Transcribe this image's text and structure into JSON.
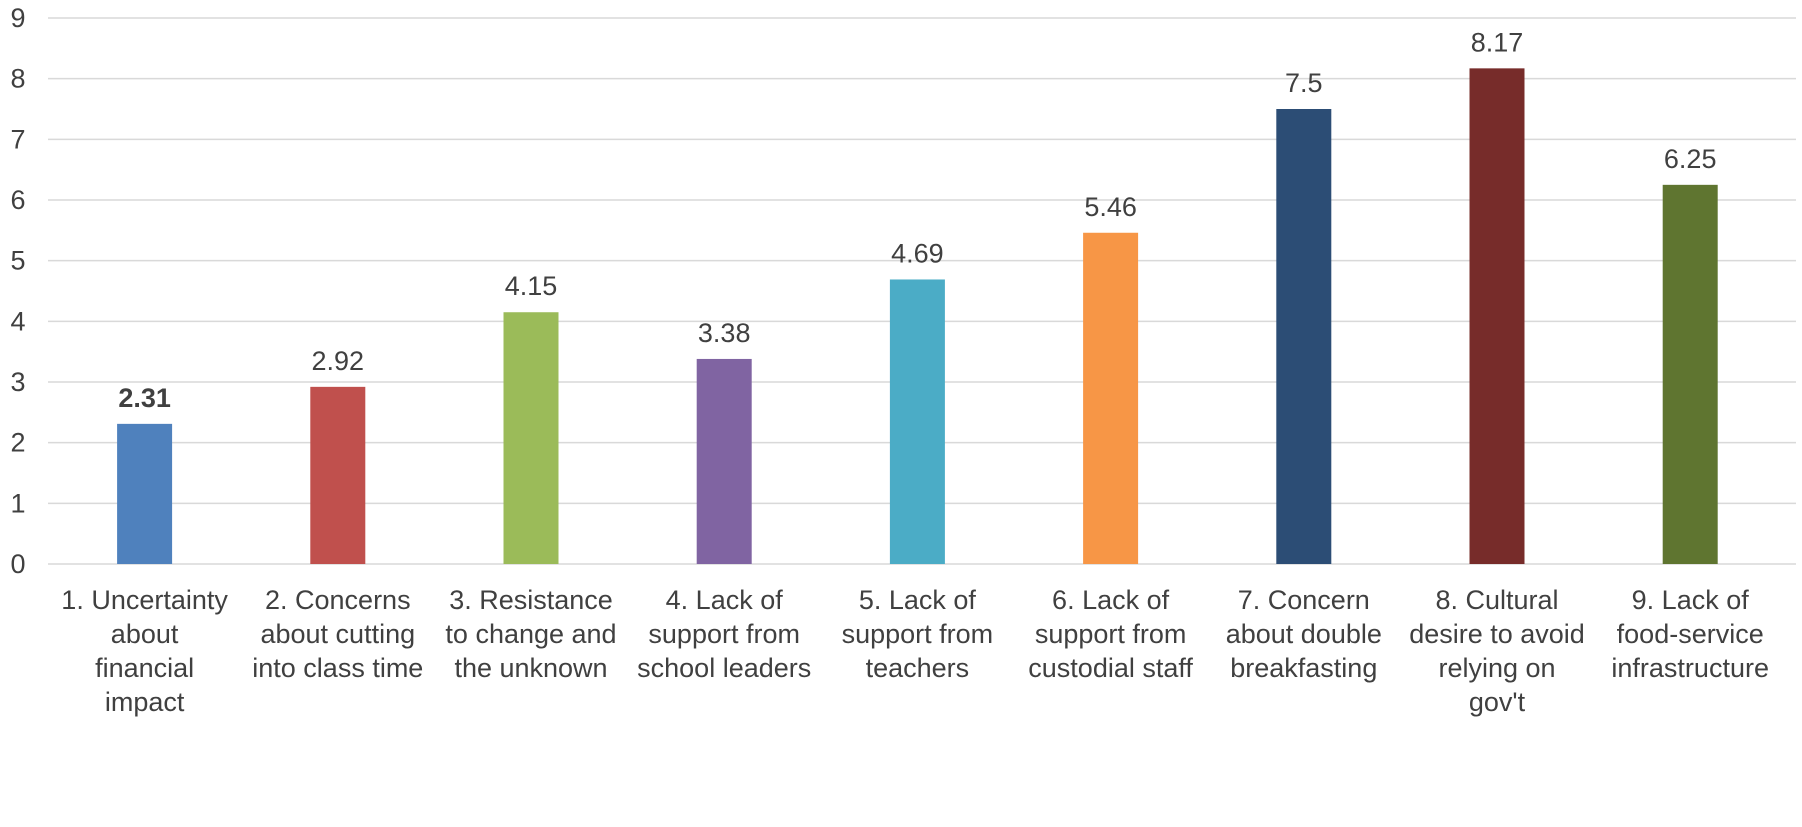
{
  "chart_data": {
    "type": "bar",
    "title": "",
    "xlabel": "",
    "ylabel": "",
    "ylim": [
      0,
      9
    ],
    "yticks": [
      "0",
      "1",
      "2",
      "3",
      "4",
      "5",
      "6",
      "7",
      "8",
      "9"
    ],
    "grid": true,
    "categories": [
      [
        "1. Uncertainty",
        "about",
        "financial",
        "impact"
      ],
      [
        "2. Concerns",
        "about cutting",
        "into class time"
      ],
      [
        "3. Resistance",
        "to change and",
        "the unknown"
      ],
      [
        "4. Lack of",
        "support from",
        "school leaders"
      ],
      [
        "5. Lack of",
        "support from",
        "teachers"
      ],
      [
        "6. Lack of",
        "support from",
        "custodial staff"
      ],
      [
        "7. Concern",
        "about double",
        "breakfasting"
      ],
      [
        "8. Cultural",
        "desire to avoid",
        "relying on",
        "gov't"
      ],
      [
        "9. Lack of",
        "food-service",
        "infrastructure"
      ]
    ],
    "values": [
      2.31,
      2.92,
      4.15,
      3.38,
      4.69,
      5.46,
      7.5,
      8.17,
      6.25
    ],
    "data_labels": [
      "2.31",
      "2.92",
      "4.15",
      "3.38",
      "4.69",
      "5.46",
      "7.5",
      "8.17",
      "6.25"
    ],
    "bold_labels": [
      true,
      false,
      false,
      false,
      false,
      false,
      false,
      false,
      false
    ],
    "colors": [
      "#4F81BD",
      "#C0504D",
      "#9BBB59",
      "#8064A2",
      "#4BACC6",
      "#F79646",
      "#2C4D75",
      "#772C2A",
      "#5F7530"
    ],
    "gridline_color": "#D9D9D9",
    "text_color": "#404040"
  }
}
